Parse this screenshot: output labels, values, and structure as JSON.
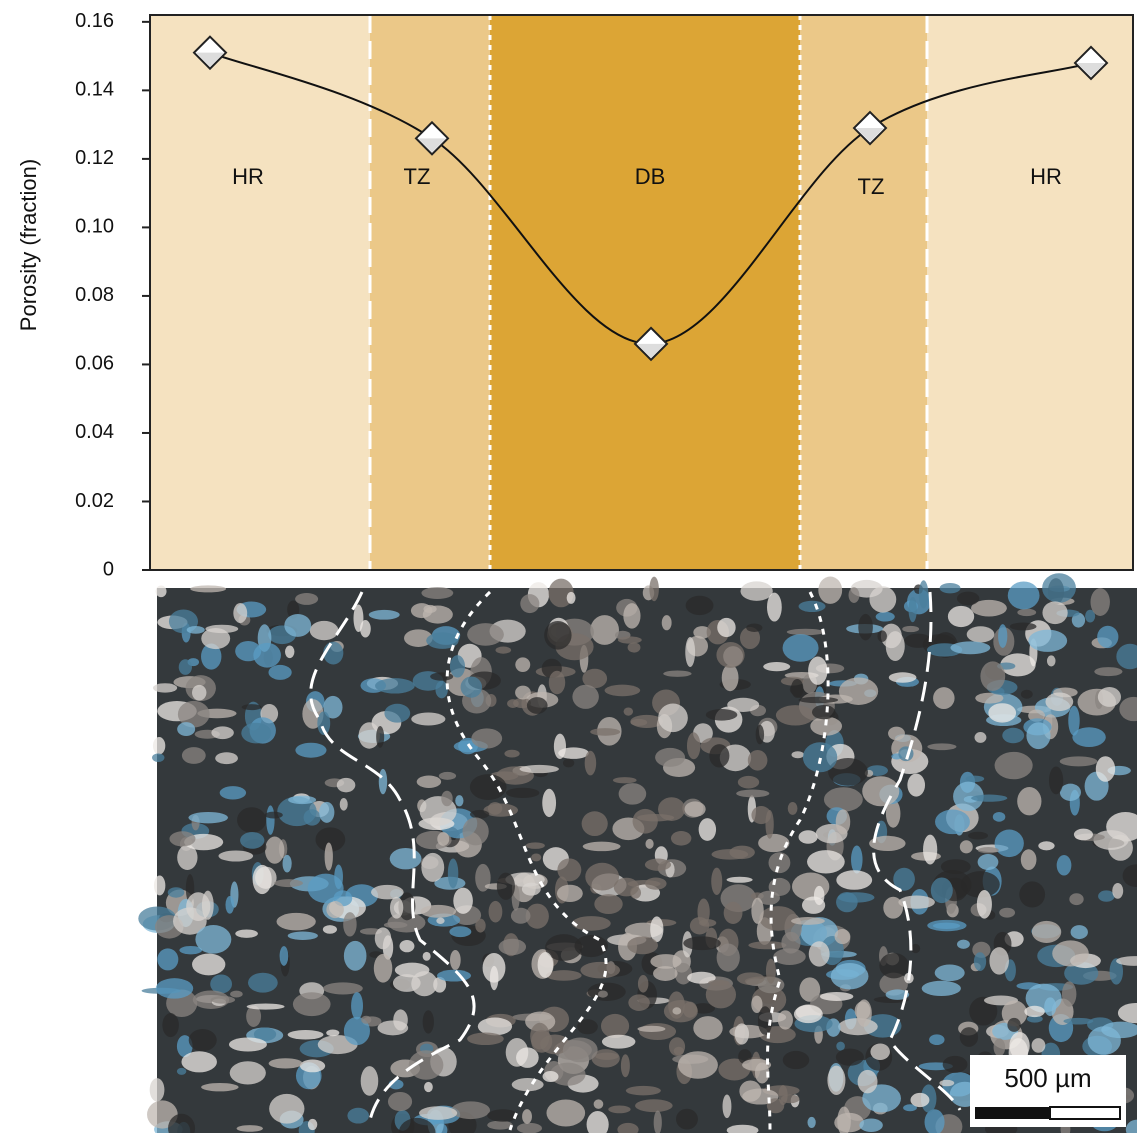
{
  "chart_data": {
    "type": "line",
    "y_label": "Porosity (fraction)",
    "categories": [
      "HR",
      "TZ",
      "DB",
      "TZ",
      "HR"
    ],
    "values": [
      0.151,
      0.126,
      0.066,
      0.129,
      0.148
    ],
    "zone_colors": [
      "#f5e2c0",
      "#ebc888",
      "#dca535",
      "#ebc888",
      "#f5e2c0"
    ],
    "color": "#111111",
    "ylim": [
      0,
      0.162
    ],
    "yticks": [
      0,
      0.02,
      0.04,
      0.06,
      0.08,
      {
        "value": 0.1,
        "label": "0.10"
      },
      0.12,
      0.14,
      0.16
    ],
    "annotations": [
      "500 µm"
    ]
  }
}
